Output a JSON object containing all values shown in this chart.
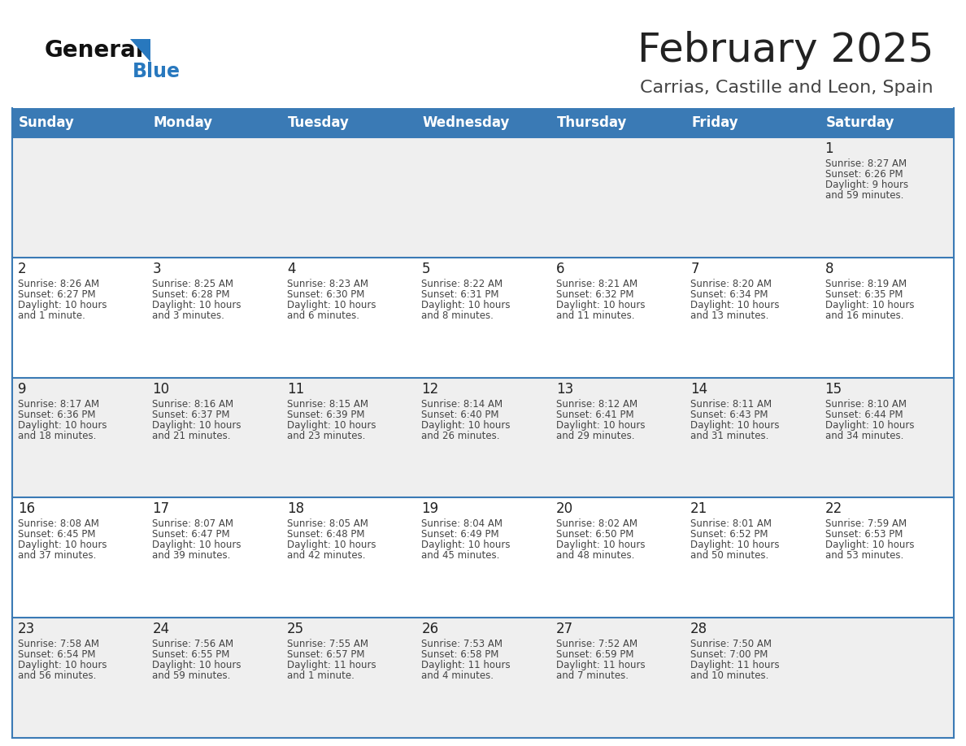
{
  "title": "February 2025",
  "subtitle": "Carrias, Castille and Leon, Spain",
  "days_of_week": [
    "Sunday",
    "Monday",
    "Tuesday",
    "Wednesday",
    "Thursday",
    "Friday",
    "Saturday"
  ],
  "header_bg": "#3a7ab5",
  "header_text": "#ffffff",
  "row_bg_odd": "#efefef",
  "row_bg_even": "#ffffff",
  "row_border_color": "#3a7ab5",
  "day_number_color": "#222222",
  "text_color": "#444444",
  "title_color": "#222222",
  "subtitle_color": "#444444",
  "logo_general_color": "#111111",
  "logo_blue_color": "#2878be",
  "bg_color": "#ffffff",
  "weeks": [
    [
      {
        "day": null,
        "data": null
      },
      {
        "day": null,
        "data": null
      },
      {
        "day": null,
        "data": null
      },
      {
        "day": null,
        "data": null
      },
      {
        "day": null,
        "data": null
      },
      {
        "day": null,
        "data": null
      },
      {
        "day": 1,
        "data": "Sunrise: 8:27 AM\nSunset: 6:26 PM\nDaylight: 9 hours\nand 59 minutes."
      }
    ],
    [
      {
        "day": 2,
        "data": "Sunrise: 8:26 AM\nSunset: 6:27 PM\nDaylight: 10 hours\nand 1 minute."
      },
      {
        "day": 3,
        "data": "Sunrise: 8:25 AM\nSunset: 6:28 PM\nDaylight: 10 hours\nand 3 minutes."
      },
      {
        "day": 4,
        "data": "Sunrise: 8:23 AM\nSunset: 6:30 PM\nDaylight: 10 hours\nand 6 minutes."
      },
      {
        "day": 5,
        "data": "Sunrise: 8:22 AM\nSunset: 6:31 PM\nDaylight: 10 hours\nand 8 minutes."
      },
      {
        "day": 6,
        "data": "Sunrise: 8:21 AM\nSunset: 6:32 PM\nDaylight: 10 hours\nand 11 minutes."
      },
      {
        "day": 7,
        "data": "Sunrise: 8:20 AM\nSunset: 6:34 PM\nDaylight: 10 hours\nand 13 minutes."
      },
      {
        "day": 8,
        "data": "Sunrise: 8:19 AM\nSunset: 6:35 PM\nDaylight: 10 hours\nand 16 minutes."
      }
    ],
    [
      {
        "day": 9,
        "data": "Sunrise: 8:17 AM\nSunset: 6:36 PM\nDaylight: 10 hours\nand 18 minutes."
      },
      {
        "day": 10,
        "data": "Sunrise: 8:16 AM\nSunset: 6:37 PM\nDaylight: 10 hours\nand 21 minutes."
      },
      {
        "day": 11,
        "data": "Sunrise: 8:15 AM\nSunset: 6:39 PM\nDaylight: 10 hours\nand 23 minutes."
      },
      {
        "day": 12,
        "data": "Sunrise: 8:14 AM\nSunset: 6:40 PM\nDaylight: 10 hours\nand 26 minutes."
      },
      {
        "day": 13,
        "data": "Sunrise: 8:12 AM\nSunset: 6:41 PM\nDaylight: 10 hours\nand 29 minutes."
      },
      {
        "day": 14,
        "data": "Sunrise: 8:11 AM\nSunset: 6:43 PM\nDaylight: 10 hours\nand 31 minutes."
      },
      {
        "day": 15,
        "data": "Sunrise: 8:10 AM\nSunset: 6:44 PM\nDaylight: 10 hours\nand 34 minutes."
      }
    ],
    [
      {
        "day": 16,
        "data": "Sunrise: 8:08 AM\nSunset: 6:45 PM\nDaylight: 10 hours\nand 37 minutes."
      },
      {
        "day": 17,
        "data": "Sunrise: 8:07 AM\nSunset: 6:47 PM\nDaylight: 10 hours\nand 39 minutes."
      },
      {
        "day": 18,
        "data": "Sunrise: 8:05 AM\nSunset: 6:48 PM\nDaylight: 10 hours\nand 42 minutes."
      },
      {
        "day": 19,
        "data": "Sunrise: 8:04 AM\nSunset: 6:49 PM\nDaylight: 10 hours\nand 45 minutes."
      },
      {
        "day": 20,
        "data": "Sunrise: 8:02 AM\nSunset: 6:50 PM\nDaylight: 10 hours\nand 48 minutes."
      },
      {
        "day": 21,
        "data": "Sunrise: 8:01 AM\nSunset: 6:52 PM\nDaylight: 10 hours\nand 50 minutes."
      },
      {
        "day": 22,
        "data": "Sunrise: 7:59 AM\nSunset: 6:53 PM\nDaylight: 10 hours\nand 53 minutes."
      }
    ],
    [
      {
        "day": 23,
        "data": "Sunrise: 7:58 AM\nSunset: 6:54 PM\nDaylight: 10 hours\nand 56 minutes."
      },
      {
        "day": 24,
        "data": "Sunrise: 7:56 AM\nSunset: 6:55 PM\nDaylight: 10 hours\nand 59 minutes."
      },
      {
        "day": 25,
        "data": "Sunrise: 7:55 AM\nSunset: 6:57 PM\nDaylight: 11 hours\nand 1 minute."
      },
      {
        "day": 26,
        "data": "Sunrise: 7:53 AM\nSunset: 6:58 PM\nDaylight: 11 hours\nand 4 minutes."
      },
      {
        "day": 27,
        "data": "Sunrise: 7:52 AM\nSunset: 6:59 PM\nDaylight: 11 hours\nand 7 minutes."
      },
      {
        "day": 28,
        "data": "Sunrise: 7:50 AM\nSunset: 7:00 PM\nDaylight: 11 hours\nand 10 minutes."
      },
      {
        "day": null,
        "data": null
      }
    ]
  ]
}
